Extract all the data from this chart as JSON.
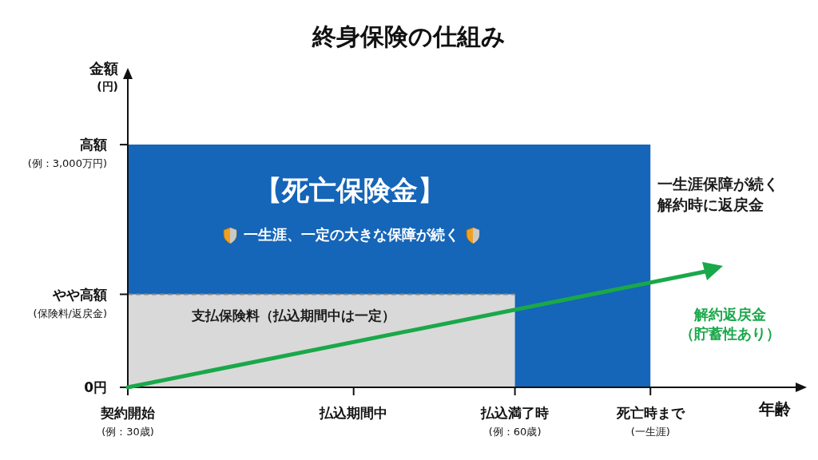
{
  "chart_data": {
    "type": "area",
    "title": "終身保険の仕組み",
    "xlabel": "年齢",
    "ylabel": "金額\n(円)",
    "xlim": [
      30,
      82
    ],
    "xticks": [
      {
        "value": 30,
        "label": "契約開始\n(例：30歳)"
      },
      {
        "value": 47.5,
        "label": "払込期間中"
      },
      {
        "value": 60,
        "label": "払込満了時\n(例：60歳)"
      },
      {
        "value": 70.5,
        "label": "死亡時まで\n(一生涯)"
      }
    ],
    "ylim": [
      0,
      3850
    ],
    "yticks": [
      {
        "value": 0,
        "label": "0円"
      },
      {
        "value": 1150,
        "label": "やや高額\n(保険料/返戻金)"
      },
      {
        "value": 3000,
        "label": "高額\n(例：3,000万円)"
      }
    ],
    "series": [
      {
        "name": "【死亡保険金】",
        "color": "#1565b8",
        "x": [
          30,
          70.5
        ],
        "values": [
          3000,
          3000
        ]
      },
      {
        "name": "支払保険料（払込期間中は一定）",
        "color": "#d9d9d9",
        "line_style": "dashed",
        "x": [
          30,
          60
        ],
        "values": [
          1150,
          1150
        ]
      }
    ],
    "annotations": [
      "一生涯、一定の大きな保障が続く",
      "一生涯保障が続く解約時に返戻金",
      "解約返戻金（貯蓄性あり）"
    ]
  }
}
